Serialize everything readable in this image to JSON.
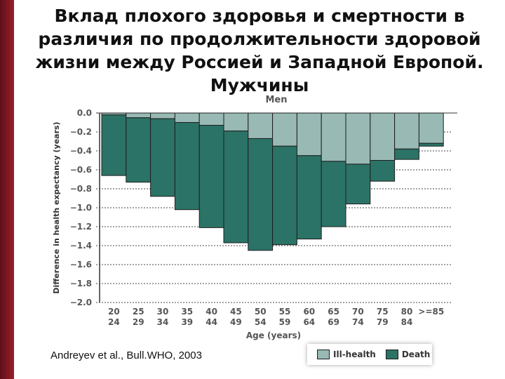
{
  "slide": {
    "title": "Вклад плохого здоровья и смертности в различия по продолжительности здоровой жизни между Россией и Западной Европой. Мужчины",
    "citation": "Andreyev et al., Bull.WHO, 2003"
  },
  "colors": {
    "ill_health": "#98b9b4",
    "death": "#2b7366",
    "accent": "#8b1a26"
  },
  "chart_data": {
    "type": "bar",
    "stacked": true,
    "title": "Men",
    "xlabel": "Age (years)",
    "ylabel": "Difference in health expectancy (years)",
    "ylim": [
      -2.0,
      0.0
    ],
    "yticks": [
      "0.0",
      "−0.2",
      "−0.4",
      "−0.6",
      "−0.8",
      "−1.0",
      "−1.2",
      "−1.4",
      "−1.6",
      "−1.8",
      "−2.0"
    ],
    "grid": true,
    "legend_position": "bottom-right",
    "categories": [
      {
        "top": "20",
        "bottom": "24"
      },
      {
        "top": "25",
        "bottom": "29"
      },
      {
        "top": "30",
        "bottom": "34"
      },
      {
        "top": "35",
        "bottom": "39"
      },
      {
        "top": "40",
        "bottom": "44"
      },
      {
        "top": "45",
        "bottom": "49"
      },
      {
        "top": "50",
        "bottom": "54"
      },
      {
        "top": "55",
        "bottom": "59"
      },
      {
        "top": "60",
        "bottom": "64"
      },
      {
        "top": "65",
        "bottom": "69"
      },
      {
        "top": "70",
        "bottom": "74"
      },
      {
        "top": "75",
        "bottom": "79"
      },
      {
        "top": "80",
        "bottom": "84"
      },
      {
        "top": ">=85",
        "bottom": ""
      }
    ],
    "series": [
      {
        "name": "Ill-health",
        "color": "#98b9b4",
        "values": [
          -0.02,
          -0.05,
          -0.06,
          -0.1,
          -0.13,
          -0.19,
          -0.27,
          -0.35,
          -0.45,
          -0.51,
          -0.54,
          -0.5,
          -0.38,
          -0.32
        ]
      },
      {
        "name": "Death",
        "color": "#2b7366",
        "values": [
          -0.64,
          -0.68,
          -0.82,
          -0.92,
          -1.08,
          -1.18,
          -1.18,
          -1.04,
          -0.88,
          -0.69,
          -0.42,
          -0.22,
          -0.11,
          -0.03
        ]
      }
    ]
  }
}
